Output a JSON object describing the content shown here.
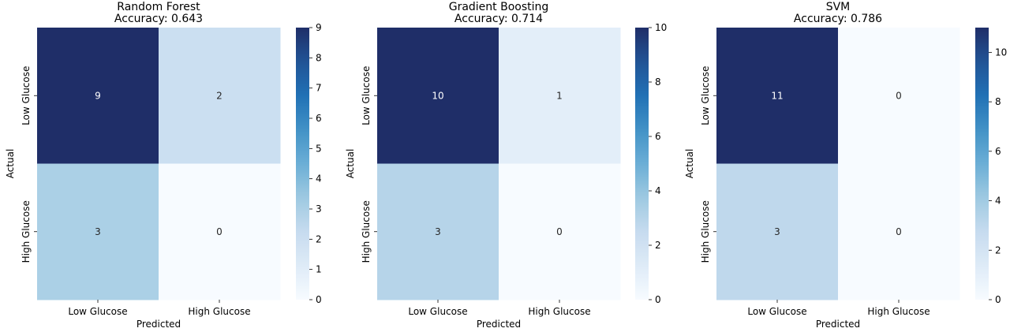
{
  "chart_data": [
    {
      "type": "heatmap",
      "title": "Random Forest\nAccuracy: 0.643",
      "xlabel": "Predicted",
      "ylabel": "Actual",
      "x_categories": [
        "Low Glucose",
        "High Glucose"
      ],
      "y_categories": [
        "Low Glucose",
        "High Glucose"
      ],
      "values": [
        [
          9,
          2
        ],
        [
          3,
          0
        ]
      ],
      "colorbar": {
        "range": [
          0,
          9
        ],
        "ticks": [
          0,
          1,
          2,
          3,
          4,
          5,
          6,
          7,
          8,
          9
        ]
      },
      "colormap": "Blues"
    },
    {
      "type": "heatmap",
      "title": "Gradient Boosting\nAccuracy: 0.714",
      "xlabel": "Predicted",
      "ylabel": "Actual",
      "x_categories": [
        "Low Glucose",
        "High Glucose"
      ],
      "y_categories": [
        "Low Glucose",
        "High Glucose"
      ],
      "values": [
        [
          10,
          1
        ],
        [
          3,
          0
        ]
      ],
      "colorbar": {
        "range": [
          0,
          10
        ],
        "ticks": [
          0,
          2,
          4,
          6,
          8,
          10
        ]
      },
      "colormap": "Blues"
    },
    {
      "type": "heatmap",
      "title": "SVM\nAccuracy: 0.786",
      "xlabel": "Predicted",
      "ylabel": "Actual",
      "x_categories": [
        "Low Glucose",
        "High Glucose"
      ],
      "y_categories": [
        "Low Glucose",
        "High Glucose"
      ],
      "values": [
        [
          11,
          0
        ],
        [
          3,
          0
        ]
      ],
      "colorbar": {
        "range": [
          0,
          11
        ],
        "ticks": [
          0,
          2,
          4,
          6,
          8,
          10
        ]
      },
      "colormap": "Blues"
    }
  ]
}
